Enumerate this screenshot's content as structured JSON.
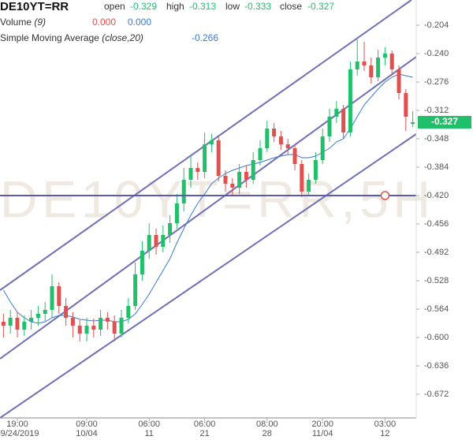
{
  "chart_data": {
    "type": "candlestick",
    "title": "DE10YT=RR",
    "watermark": "DE10YT=RR,5H",
    "ohlc_legend": [
      {
        "label": "open",
        "value": -0.329
      },
      {
        "label": "high",
        "value": -0.313
      },
      {
        "label": "low",
        "value": -0.333
      },
      {
        "label": "close",
        "value": -0.327
      }
    ],
    "volume": {
      "name": "Volume",
      "params": "(9)",
      "values": [
        0,
        0
      ],
      "value_labels": [
        "0.000",
        "0.000"
      ],
      "colors": [
        "#e0504f",
        "#3a7bd5"
      ]
    },
    "sma": {
      "name": "Simple Moving Average",
      "params": "(close,20)",
      "last": -0.266,
      "color": "#3a7bd5",
      "values": [
        -0.54,
        -0.555,
        -0.568,
        -0.575,
        -0.58,
        -0.582,
        -0.58,
        -0.575,
        -0.572,
        -0.572,
        -0.574,
        -0.577,
        -0.578,
        -0.579,
        -0.578,
        -0.578,
        -0.58,
        -0.58,
        -0.577,
        -0.57,
        -0.558,
        -0.545,
        -0.53,
        -0.515,
        -0.5,
        -0.48,
        -0.462,
        -0.445,
        -0.43,
        -0.418,
        -0.405,
        -0.398,
        -0.392,
        -0.388,
        -0.385,
        -0.382,
        -0.38,
        -0.378,
        -0.375,
        -0.372,
        -0.37,
        -0.368,
        -0.368,
        -0.372,
        -0.372,
        -0.37,
        -0.365,
        -0.36,
        -0.352,
        -0.348,
        -0.335,
        -0.32,
        -0.305,
        -0.295,
        -0.285,
        -0.276,
        -0.27,
        -0.266,
        -0.268,
        -0.27
      ]
    },
    "up_color": "#22bf6b",
    "down_color": "#e0504f",
    "open": [
      -0.58,
      -0.585,
      -0.575,
      -0.59,
      -0.58,
      -0.575,
      -0.57,
      -0.565,
      -0.535,
      -0.56,
      -0.575,
      -0.585,
      -0.595,
      -0.585,
      -0.59,
      -0.575,
      -0.58,
      -0.595,
      -0.575,
      -0.56,
      -0.52,
      -0.49,
      -0.47,
      -0.485,
      -0.47,
      -0.455,
      -0.43,
      -0.4,
      -0.385,
      -0.39,
      -0.355,
      -0.35,
      -0.395,
      -0.405,
      -0.41,
      -0.39,
      -0.4,
      -0.375,
      -0.36,
      -0.335,
      -0.345,
      -0.355,
      -0.36,
      -0.38,
      -0.415,
      -0.4,
      -0.375,
      -0.345,
      -0.32,
      -0.31,
      -0.34,
      -0.26,
      -0.25,
      -0.255,
      -0.27,
      -0.245,
      -0.24,
      -0.26,
      -0.29,
      -0.329
    ],
    "high": [
      -0.57,
      -0.565,
      -0.568,
      -0.572,
      -0.565,
      -0.56,
      -0.555,
      -0.52,
      -0.53,
      -0.55,
      -0.568,
      -0.578,
      -0.575,
      -0.576,
      -0.565,
      -0.568,
      -0.572,
      -0.565,
      -0.55,
      -0.505,
      -0.478,
      -0.455,
      -0.462,
      -0.458,
      -0.445,
      -0.418,
      -0.385,
      -0.37,
      -0.378,
      -0.34,
      -0.342,
      -0.345,
      -0.388,
      -0.398,
      -0.38,
      -0.382,
      -0.365,
      -0.35,
      -0.325,
      -0.328,
      -0.338,
      -0.348,
      -0.355,
      -0.375,
      -0.392,
      -0.365,
      -0.335,
      -0.31,
      -0.3,
      -0.305,
      -0.25,
      -0.222,
      -0.225,
      -0.245,
      -0.235,
      -0.232,
      -0.236,
      -0.255,
      -0.285,
      -0.313
    ],
    "low": [
      -0.6,
      -0.595,
      -0.6,
      -0.598,
      -0.59,
      -0.585,
      -0.58,
      -0.575,
      -0.57,
      -0.585,
      -0.6,
      -0.605,
      -0.605,
      -0.6,
      -0.598,
      -0.59,
      -0.605,
      -0.6,
      -0.582,
      -0.565,
      -0.528,
      -0.5,
      -0.495,
      -0.492,
      -0.48,
      -0.462,
      -0.44,
      -0.41,
      -0.4,
      -0.398,
      -0.365,
      -0.402,
      -0.415,
      -0.42,
      -0.418,
      -0.41,
      -0.405,
      -0.382,
      -0.365,
      -0.352,
      -0.362,
      -0.368,
      -0.388,
      -0.422,
      -0.42,
      -0.405,
      -0.38,
      -0.352,
      -0.328,
      -0.348,
      -0.345,
      -0.268,
      -0.262,
      -0.278,
      -0.275,
      -0.255,
      -0.268,
      -0.298,
      -0.338,
      -0.333
    ],
    "close": [
      -0.585,
      -0.575,
      -0.59,
      -0.58,
      -0.575,
      -0.57,
      -0.565,
      -0.535,
      -0.56,
      -0.575,
      -0.585,
      -0.595,
      -0.585,
      -0.59,
      -0.575,
      -0.58,
      -0.595,
      -0.575,
      -0.56,
      -0.52,
      -0.49,
      -0.47,
      -0.485,
      -0.47,
      -0.455,
      -0.43,
      -0.4,
      -0.385,
      -0.39,
      -0.355,
      -0.35,
      -0.395,
      -0.405,
      -0.41,
      -0.39,
      -0.4,
      -0.375,
      -0.36,
      -0.335,
      -0.345,
      -0.355,
      -0.36,
      -0.38,
      -0.415,
      -0.4,
      -0.375,
      -0.345,
      -0.32,
      -0.31,
      -0.34,
      -0.26,
      -0.25,
      -0.255,
      -0.27,
      -0.245,
      -0.24,
      -0.26,
      -0.29,
      -0.32,
      -0.327
    ],
    "categories": [
      null,
      null,
      {
        "time": "19:00",
        "date": "09/24/2019"
      },
      null,
      null,
      null,
      null,
      null,
      null,
      null,
      null,
      null,
      {
        "time": "09:00",
        "date": "10/04"
      },
      null,
      null,
      null,
      null,
      null,
      null,
      null,
      null,
      {
        "time": "06:00",
        "date": "11"
      },
      null,
      null,
      null,
      null,
      null,
      null,
      null,
      {
        "time": "06:00",
        "date": "21"
      },
      null,
      null,
      null,
      null,
      null,
      null,
      null,
      null,
      {
        "time": "08:00",
        "date": "28"
      },
      null,
      null,
      null,
      null,
      null,
      null,
      null,
      {
        "time": "20:00",
        "date": "11/04"
      },
      null,
      null,
      null,
      null,
      null,
      null,
      null,
      null,
      {
        "time": "03:00",
        "date": "12"
      },
      null,
      null,
      null,
      null
    ],
    "last_price": -0.327,
    "ylim": [
      -0.702,
      -0.172
    ],
    "yticks": [
      -0.204,
      {
        "value": -0.24,
        "label": "-0.240"
      },
      -0.276,
      -0.312,
      -0.348,
      -0.384,
      {
        "value": -0.42,
        "label": "-0.420"
      },
      -0.456,
      -0.492,
      -0.528,
      -0.564,
      {
        "value": -0.6,
        "label": "-0.600"
      },
      -0.636,
      -0.672
    ],
    "channels": [
      {
        "x": [
          -0.5,
          58.8
        ],
        "y": [
          -0.54,
          -0.172
        ],
        "color": "#6f6fb8"
      },
      {
        "x": [
          -0.5,
          59.5
        ],
        "y": [
          -0.627,
          -0.244
        ],
        "color": "#6f6fb8"
      },
      {
        "x": [
          -0.5,
          59.5
        ],
        "y": [
          -0.702,
          -0.342
        ],
        "color": "#6f6fb8"
      }
    ],
    "hline": {
      "value": -0.42,
      "color": "#5a5ab0",
      "marker_x": 55
    }
  }
}
